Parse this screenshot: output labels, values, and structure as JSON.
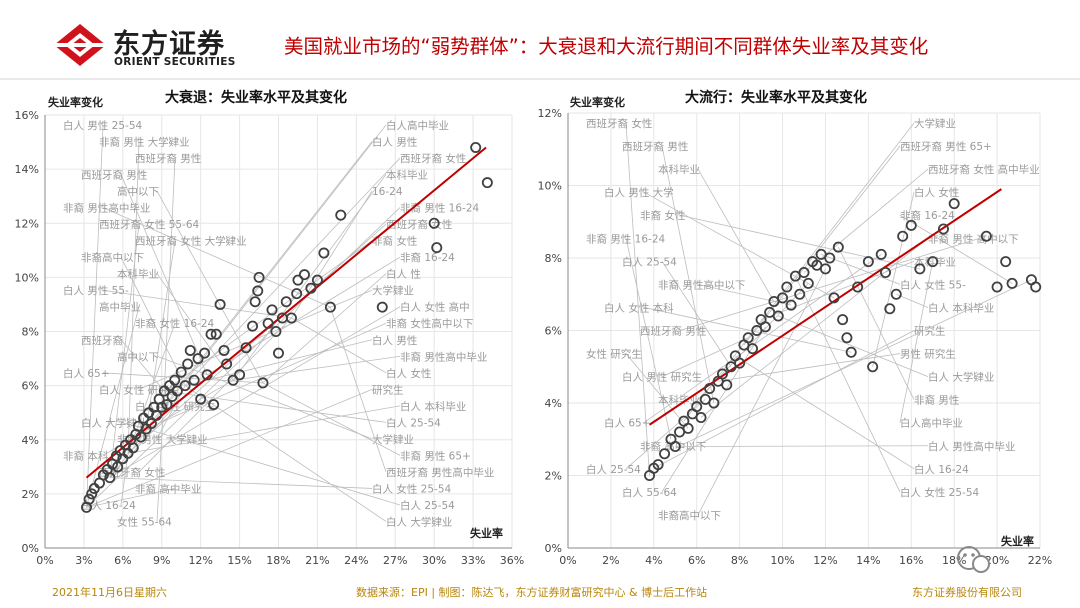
{
  "header": {
    "logo_cn": "东方证券",
    "logo_en": "ORIENT SECURITIES",
    "title": "美国就业市场的“弱势群体”：大衰退和大流行期间不同群体失业率及其变化"
  },
  "footer": {
    "date": "2021年11月6日星期六",
    "source": "数据来源：EPI | 制图：陈达飞，东方证券财富研究中心 & 博士后工作站",
    "company": "东方证券股份有限公司"
  },
  "colors": {
    "brand_red": "#d0121b",
    "title_red": "#c00000",
    "trend_red": "#c00000",
    "footer_gold": "#b8860b",
    "marker": "#404040",
    "annotation_gray": "#9a9a9a"
  },
  "chart_data": [
    {
      "type": "scatter",
      "title": "大衰退：失业率水平及其变化",
      "ylabel": "失业率变化",
      "xlabel": "失业率",
      "xlim": [
        0,
        36
      ],
      "ylim": [
        0,
        16
      ],
      "x_ticks": [
        "0%",
        "3%",
        "6%",
        "9%",
        "12%",
        "15%",
        "18%",
        "21%",
        "24%",
        "27%",
        "30%",
        "33%",
        "36%"
      ],
      "y_ticks": [
        "0%",
        "2%",
        "4%",
        "6%",
        "8%",
        "10%",
        "12%",
        "14%",
        "16%"
      ],
      "grid": true,
      "trendline": {
        "x": [
          3.2,
          34.0
        ],
        "y": [
          2.6,
          14.8
        ]
      },
      "points": [
        {
          "x": 3.2,
          "y": 1.5
        },
        {
          "x": 3.4,
          "y": 1.8
        },
        {
          "x": 3.6,
          "y": 2.0
        },
        {
          "x": 3.8,
          "y": 2.2
        },
        {
          "x": 4.2,
          "y": 2.4
        },
        {
          "x": 4.5,
          "y": 2.7
        },
        {
          "x": 4.8,
          "y": 2.9
        },
        {
          "x": 5.0,
          "y": 2.6
        },
        {
          "x": 5.2,
          "y": 3.1
        },
        {
          "x": 5.5,
          "y": 3.4
        },
        {
          "x": 5.6,
          "y": 3.0
        },
        {
          "x": 5.8,
          "y": 3.6
        },
        {
          "x": 6.0,
          "y": 3.3
        },
        {
          "x": 6.2,
          "y": 3.8
        },
        {
          "x": 6.4,
          "y": 3.5
        },
        {
          "x": 6.6,
          "y": 4.0
        },
        {
          "x": 6.8,
          "y": 3.7
        },
        {
          "x": 7.0,
          "y": 4.2
        },
        {
          "x": 7.2,
          "y": 4.5
        },
        {
          "x": 7.4,
          "y": 4.1
        },
        {
          "x": 7.6,
          "y": 4.8
        },
        {
          "x": 7.8,
          "y": 4.4
        },
        {
          "x": 8.0,
          "y": 5.0
        },
        {
          "x": 8.2,
          "y": 4.6
        },
        {
          "x": 8.4,
          "y": 5.2
        },
        {
          "x": 8.6,
          "y": 4.9
        },
        {
          "x": 8.8,
          "y": 5.5
        },
        {
          "x": 9.0,
          "y": 5.2
        },
        {
          "x": 9.2,
          "y": 5.8
        },
        {
          "x": 9.4,
          "y": 5.3
        },
        {
          "x": 9.6,
          "y": 6.0
        },
        {
          "x": 9.8,
          "y": 5.6
        },
        {
          "x": 10.0,
          "y": 6.2
        },
        {
          "x": 10.2,
          "y": 5.8
        },
        {
          "x": 10.5,
          "y": 6.5
        },
        {
          "x": 10.8,
          "y": 6.0
        },
        {
          "x": 11.0,
          "y": 6.8
        },
        {
          "x": 11.2,
          "y": 7.3
        },
        {
          "x": 11.5,
          "y": 6.2
        },
        {
          "x": 11.8,
          "y": 7.0
        },
        {
          "x": 12.0,
          "y": 5.5
        },
        {
          "x": 12.3,
          "y": 7.2
        },
        {
          "x": 12.5,
          "y": 6.4
        },
        {
          "x": 12.8,
          "y": 7.9
        },
        {
          "x": 13.0,
          "y": 5.3
        },
        {
          "x": 13.2,
          "y": 7.9
        },
        {
          "x": 13.5,
          "y": 9.0
        },
        {
          "x": 13.8,
          "y": 7.3
        },
        {
          "x": 14.0,
          "y": 6.8
        },
        {
          "x": 14.5,
          "y": 6.2
        },
        {
          "x": 15.0,
          "y": 6.4
        },
        {
          "x": 15.5,
          "y": 7.4
        },
        {
          "x": 16.0,
          "y": 8.2
        },
        {
          "x": 16.2,
          "y": 9.1
        },
        {
          "x": 16.4,
          "y": 9.5
        },
        {
          "x": 16.5,
          "y": 10.0
        },
        {
          "x": 16.8,
          "y": 6.1
        },
        {
          "x": 17.2,
          "y": 8.3
        },
        {
          "x": 17.5,
          "y": 8.8
        },
        {
          "x": 17.8,
          "y": 8.0
        },
        {
          "x": 18.0,
          "y": 7.2
        },
        {
          "x": 18.3,
          "y": 8.5
        },
        {
          "x": 18.6,
          "y": 9.1
        },
        {
          "x": 19.0,
          "y": 8.5
        },
        {
          "x": 19.4,
          "y": 9.4
        },
        {
          "x": 19.5,
          "y": 9.9
        },
        {
          "x": 20.0,
          "y": 10.1
        },
        {
          "x": 20.5,
          "y": 9.6
        },
        {
          "x": 21.0,
          "y": 9.9
        },
        {
          "x": 21.5,
          "y": 10.9
        },
        {
          "x": 22.0,
          "y": 8.9
        },
        {
          "x": 22.8,
          "y": 12.3
        },
        {
          "x": 26.0,
          "y": 8.9
        },
        {
          "x": 30.0,
          "y": 12.0
        },
        {
          "x": 30.2,
          "y": 11.1
        },
        {
          "x": 33.2,
          "y": 14.8
        },
        {
          "x": 34.1,
          "y": 13.5
        }
      ],
      "annotations": [
        "白人 男性 25-54",
        "白人高中毕业",
        "非裔 男性 大学肄业",
        "白人 男性",
        "西班牙裔 男性",
        "西班牙裔 女性",
        "西班牙裔 男性",
        "本科毕业",
        "高中以下",
        "16-24",
        "非裔 男性高中毕业",
        "非裔 男性 16-24",
        "西班牙裔 女性 55-64",
        "西班牙裔 女性",
        "西班牙裔 女性 大学肄业",
        "非裔 女性",
        "非裔高中以下",
        "非裔 16-24",
        "本科毕业",
        "白人 性",
        "白人 男性 55-",
        "大学肄业",
        "高中毕业",
        "白人 女性 高中",
        "非裔 女性 16-24",
        "非裔 女性高中以下",
        "西班牙裔",
        "白人 男性",
        "高中以下",
        "非裔 男性高中毕业",
        "白人 65+",
        "白人 女性",
        "白人 女性 研究生",
        "研究生",
        "白人 男性 研究生",
        "白人 本科毕业",
        "白人 大学肄业",
        "白人 25-54",
        "非裔 男性 大学肄业",
        "大学肄业",
        "非裔 本科",
        "非裔 男性 65+",
        "西班牙裔 女性",
        "西班牙裔 男性高中毕业",
        "非裔 高中毕业",
        "白人 女性 25-54",
        "白人 16-24",
        "白人 25-54",
        "女性 55-64",
        "白人 大学肄业"
      ]
    },
    {
      "type": "scatter",
      "title": "大流行：失业率水平及其变化",
      "ylabel": "失业率变化",
      "xlabel": "失业率",
      "xlim": [
        0,
        22
      ],
      "ylim": [
        0,
        12
      ],
      "x_ticks": [
        "0%",
        "2%",
        "4%",
        "6%",
        "8%",
        "10%",
        "12%",
        "14%",
        "16%",
        "18%",
        "20%",
        "22%"
      ],
      "y_ticks": [
        "0%",
        "2%",
        "4%",
        "6%",
        "8%",
        "10%",
        "12%"
      ],
      "grid": true,
      "trendline": {
        "x": [
          3.8,
          20.2
        ],
        "y": [
          3.4,
          9.9
        ]
      },
      "points": [
        {
          "x": 3.8,
          "y": 2.0
        },
        {
          "x": 4.0,
          "y": 2.2
        },
        {
          "x": 4.2,
          "y": 2.3
        },
        {
          "x": 4.5,
          "y": 2.6
        },
        {
          "x": 4.8,
          "y": 3.0
        },
        {
          "x": 5.0,
          "y": 2.8
        },
        {
          "x": 5.2,
          "y": 3.2
        },
        {
          "x": 5.4,
          "y": 3.5
        },
        {
          "x": 5.6,
          "y": 3.3
        },
        {
          "x": 5.8,
          "y": 3.7
        },
        {
          "x": 6.0,
          "y": 3.9
        },
        {
          "x": 6.2,
          "y": 3.6
        },
        {
          "x": 6.4,
          "y": 4.1
        },
        {
          "x": 6.6,
          "y": 4.4
        },
        {
          "x": 6.8,
          "y": 4.0
        },
        {
          "x": 7.0,
          "y": 4.6
        },
        {
          "x": 7.2,
          "y": 4.8
        },
        {
          "x": 7.4,
          "y": 4.5
        },
        {
          "x": 7.6,
          "y": 5.0
        },
        {
          "x": 7.8,
          "y": 5.3
        },
        {
          "x": 8.0,
          "y": 5.1
        },
        {
          "x": 8.2,
          "y": 5.6
        },
        {
          "x": 8.4,
          "y": 5.8
        },
        {
          "x": 8.6,
          "y": 5.5
        },
        {
          "x": 8.8,
          "y": 6.0
        },
        {
          "x": 9.0,
          "y": 6.3
        },
        {
          "x": 9.2,
          "y": 6.1
        },
        {
          "x": 9.4,
          "y": 6.5
        },
        {
          "x": 9.6,
          "y": 6.8
        },
        {
          "x": 9.8,
          "y": 6.4
        },
        {
          "x": 10.0,
          "y": 6.9
        },
        {
          "x": 10.2,
          "y": 7.2
        },
        {
          "x": 10.4,
          "y": 6.7
        },
        {
          "x": 10.6,
          "y": 7.5
        },
        {
          "x": 10.8,
          "y": 7.0
        },
        {
          "x": 11.0,
          "y": 7.6
        },
        {
          "x": 11.2,
          "y": 7.3
        },
        {
          "x": 11.4,
          "y": 7.9
        },
        {
          "x": 11.6,
          "y": 7.8
        },
        {
          "x": 11.8,
          "y": 8.1
        },
        {
          "x": 12.0,
          "y": 7.7
        },
        {
          "x": 12.2,
          "y": 8.0
        },
        {
          "x": 12.4,
          "y": 6.9
        },
        {
          "x": 12.6,
          "y": 8.3
        },
        {
          "x": 12.8,
          "y": 6.3
        },
        {
          "x": 13.0,
          "y": 5.8
        },
        {
          "x": 13.2,
          "y": 5.4
        },
        {
          "x": 13.5,
          "y": 7.2
        },
        {
          "x": 14.0,
          "y": 7.9
        },
        {
          "x": 14.2,
          "y": 5.0
        },
        {
          "x": 14.6,
          "y": 8.1
        },
        {
          "x": 14.8,
          "y": 7.6
        },
        {
          "x": 15.0,
          "y": 6.6
        },
        {
          "x": 15.3,
          "y": 7.0
        },
        {
          "x": 15.6,
          "y": 8.6
        },
        {
          "x": 16.0,
          "y": 8.9
        },
        {
          "x": 16.4,
          "y": 7.7
        },
        {
          "x": 17.0,
          "y": 7.9
        },
        {
          "x": 17.5,
          "y": 8.8
        },
        {
          "x": 18.0,
          "y": 9.5
        },
        {
          "x": 19.5,
          "y": 8.6
        },
        {
          "x": 20.0,
          "y": 7.2
        },
        {
          "x": 20.4,
          "y": 7.9
        },
        {
          "x": 20.7,
          "y": 7.3
        },
        {
          "x": 21.6,
          "y": 7.4
        },
        {
          "x": 21.8,
          "y": 7.2
        }
      ],
      "annotations": [
        "西班牙裔 女性",
        "大学肄业",
        "西班牙裔 男性",
        "西班牙裔 男性 65+",
        "本科毕业",
        "西班牙裔 女性 高中毕业",
        "白人 男性 大学",
        "白人 女性",
        "非裔 女性",
        "非裔 16-24",
        "非裔 男性 16-24",
        "非裔 男性 高中以下",
        "白人 25-54",
        "本科毕业",
        "非裔 男性高中以下",
        "白人 女性 55-",
        "白人 女性 本科",
        "白人 本科毕业",
        "西班牙裔 男性",
        "研究生",
        "女性 研究生",
        "男性 研究生",
        "白人 男性 研究生",
        "白人 大学肄业",
        "本科毕业",
        "非裔 男性",
        "白人 65+",
        "白人高中毕业",
        "非裔 高中以下",
        "白人 男性高中毕业",
        "白人 25-54",
        "白人 16-24",
        "白人 55-64",
        "白人 女性 25-54",
        "非裔高中以下"
      ]
    }
  ]
}
